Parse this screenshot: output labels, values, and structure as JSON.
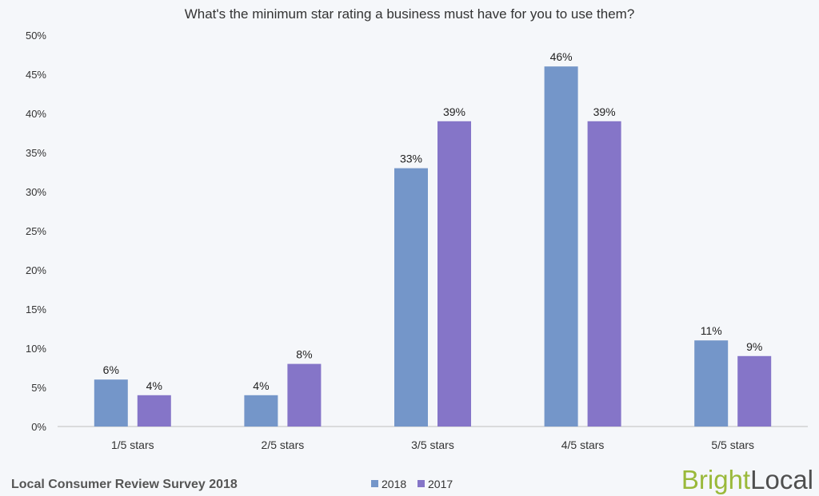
{
  "chart_data": {
    "type": "bar",
    "title": "What's the minimum star rating a business must have for you to use them?",
    "categories": [
      "1/5 stars",
      "2/5 stars",
      "3/5 stars",
      "4/5 stars",
      "5/5 stars"
    ],
    "series": [
      {
        "name": "2018",
        "values": [
          6,
          4,
          33,
          46,
          11
        ],
        "labels": [
          "6%",
          "4%",
          "33%",
          "46%",
          "11%"
        ],
        "color": "#7496c9"
      },
      {
        "name": "2017",
        "values": [
          4,
          8,
          39,
          39,
          9
        ],
        "labels": [
          "4%",
          "8%",
          "39%",
          "39%",
          "9%"
        ],
        "color": "#8575c8"
      }
    ],
    "yticks": [
      "0%",
      "5%",
      "10%",
      "15%",
      "20%",
      "25%",
      "30%",
      "35%",
      "40%",
      "45%",
      "50%"
    ],
    "ylim": [
      0,
      50
    ],
    "grid": false,
    "legend_position": "bottom-center"
  },
  "footer": {
    "survey": "Local Consumer Review Survey 2018",
    "brand_part1": "Bright",
    "brand_part2": "Local"
  },
  "colors": {
    "background": "#f5f7fa",
    "series_2018": "#7496c9",
    "series_2017": "#8575c8",
    "brand_green": "#9ab93a",
    "brand_gray": "#4f4f4f"
  }
}
